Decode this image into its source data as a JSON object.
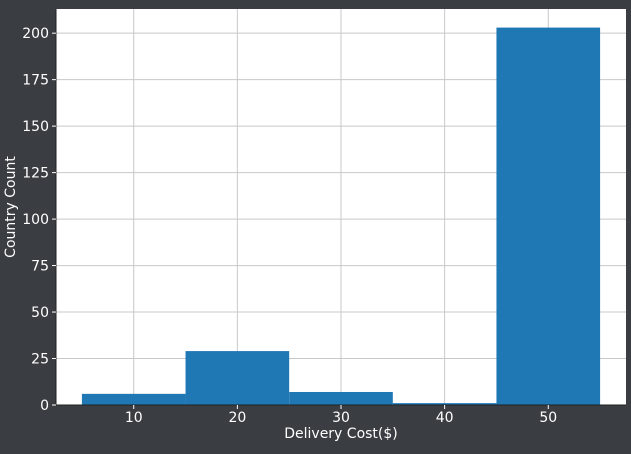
{
  "chart_data": {
    "type": "bar",
    "chart_style": "histogram",
    "bins": [
      {
        "start": 5,
        "end": 15,
        "value": 6
      },
      {
        "start": 15,
        "end": 25,
        "value": 29
      },
      {
        "start": 25,
        "end": 35,
        "value": 7
      },
      {
        "start": 35,
        "end": 45,
        "value": 1
      },
      {
        "start": 45,
        "end": 55,
        "value": 203
      }
    ],
    "xlabel": "Delivery Cost($)",
    "ylabel": "Country Count",
    "xlim": [
      2.5,
      57.5
    ],
    "ylim": [
      0,
      213
    ],
    "xticks": [
      10,
      20,
      30,
      40,
      50
    ],
    "yticks": [
      0,
      25,
      50,
      75,
      100,
      125,
      150,
      175,
      200
    ],
    "grid": true,
    "colors": {
      "bar": "#1f77b4",
      "figure_background": "#3a3d41",
      "plot_background": "#ffffff",
      "grid": "#c8c8c8",
      "text": "#ffffff"
    }
  }
}
